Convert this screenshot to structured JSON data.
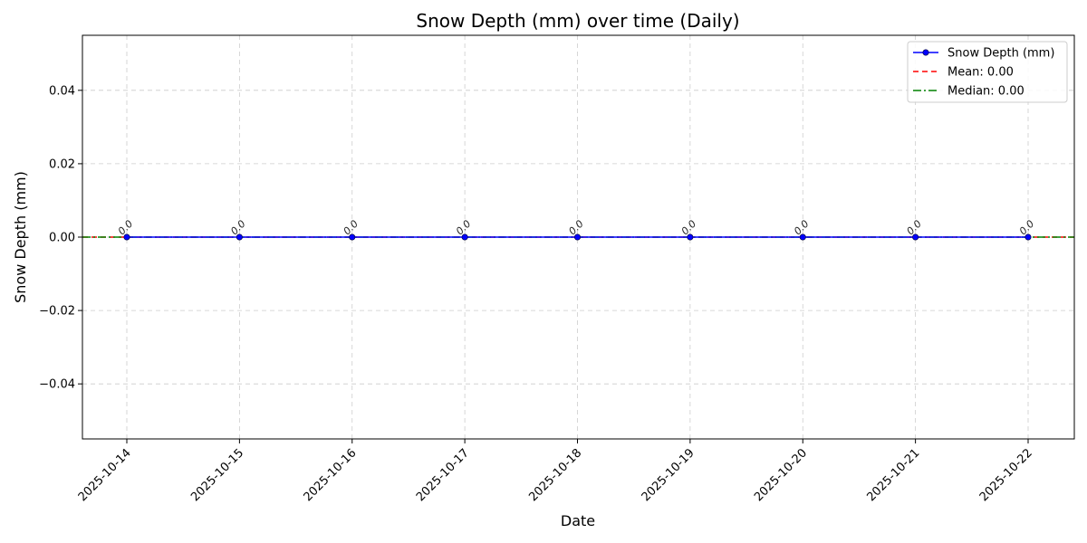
{
  "chart_data": {
    "type": "line",
    "title": "Snow Depth (mm) over time (Daily)",
    "xlabel": "Date",
    "ylabel": "Snow Depth (mm)",
    "x": [
      "2025-10-14",
      "2025-10-15",
      "2025-10-16",
      "2025-10-17",
      "2025-10-18",
      "2025-10-19",
      "2025-10-20",
      "2025-10-21",
      "2025-10-22"
    ],
    "series": [
      {
        "name": "Snow Depth (mm)",
        "values": [
          0,
          0,
          0,
          0,
          0,
          0,
          0,
          0,
          0
        ],
        "color": "#0000ff"
      }
    ],
    "data_labels": [
      "0.0",
      "0.0",
      "0.0",
      "0.0",
      "0.0",
      "0.0",
      "0.0",
      "0.0",
      "0.0"
    ],
    "reference_lines": [
      {
        "name": "Mean: 0.00",
        "value": 0.0,
        "color": "#ff0000",
        "style": "dashed"
      },
      {
        "name": "Median: 0.00",
        "value": 0.0,
        "color": "#008000",
        "style": "dashdot"
      }
    ],
    "ylim": [
      -0.055,
      0.055
    ],
    "yticks": [
      -0.04,
      -0.02,
      0.0,
      0.02,
      0.04
    ],
    "ytick_labels": [
      "−0.04",
      "−0.02",
      "0.00",
      "0.02",
      "0.04"
    ],
    "grid": true,
    "legend_position": "top-right"
  }
}
